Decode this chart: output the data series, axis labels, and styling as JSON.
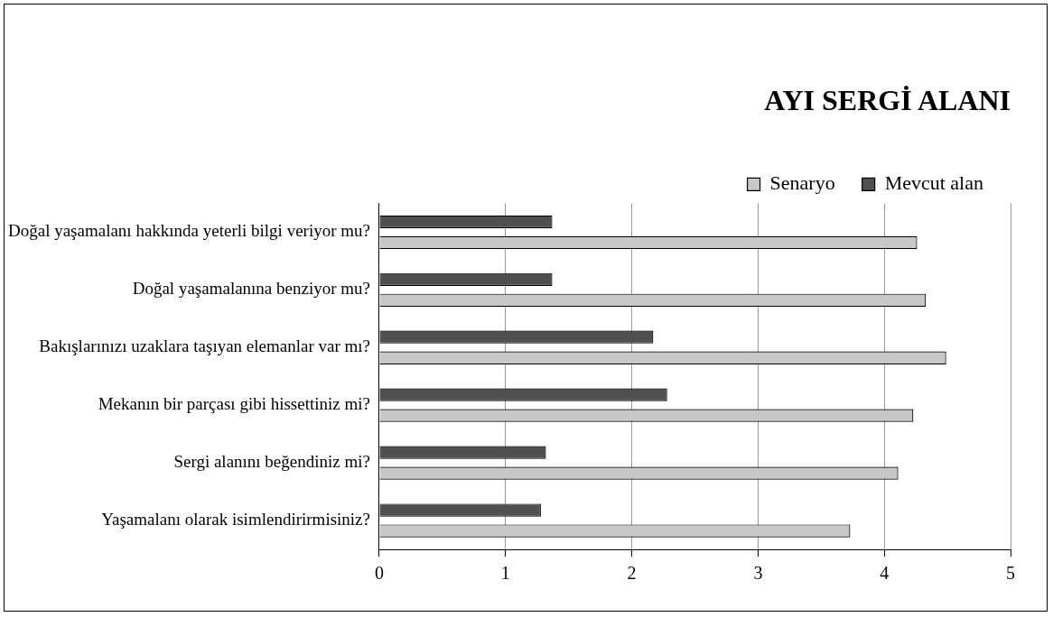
{
  "chart_data": {
    "type": "bar",
    "orientation": "horizontal",
    "title": "AYI SERGİ ALANI",
    "categories": [
      "Doğal yaşamalanı hakkında yeterli bilgi veriyor mu?",
      "Doğal yaşamalanına benziyor mu?",
      "Bakışlarınızı uzaklara taşıyan elemanlar var mı?",
      "Mekanın bir parçası gibi hissettiniz mi?",
      "Sergi alanını beğendiniz mi?",
      "Yaşamalanı olarak isimlendirirmisiniz?"
    ],
    "series": [
      {
        "name": "Senaryo",
        "color": "#c8c8c8",
        "values": [
          4.26,
          4.33,
          4.49,
          4.23,
          4.11,
          3.73
        ]
      },
      {
        "name": "Mevcut alan",
        "color": "#505050",
        "values": [
          1.37,
          1.37,
          2.17,
          2.28,
          1.32,
          1.28
        ]
      }
    ],
    "xlim": [
      0,
      5
    ],
    "xticks": [
      0,
      1,
      2,
      3,
      4,
      5
    ],
    "grid": "x",
    "legend": "top"
  }
}
